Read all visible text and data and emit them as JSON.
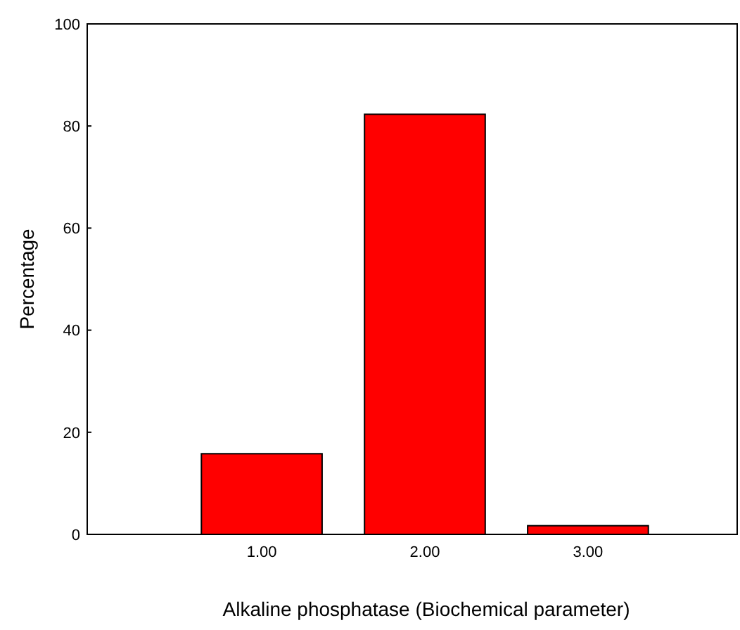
{
  "chart_data": {
    "type": "bar",
    "xlabel": "Alkaline phosphatase (Biochemical parameter)",
    "ylabel": "Percentage",
    "categories": [
      "1.00",
      "2.00",
      "3.00"
    ],
    "values": [
      15.8,
      82.3,
      1.7
    ],
    "color": "#ff0000",
    "ylim": [
      0,
      100
    ],
    "yticks": [
      0,
      20,
      40,
      60,
      80,
      100
    ],
    "grid": false
  }
}
